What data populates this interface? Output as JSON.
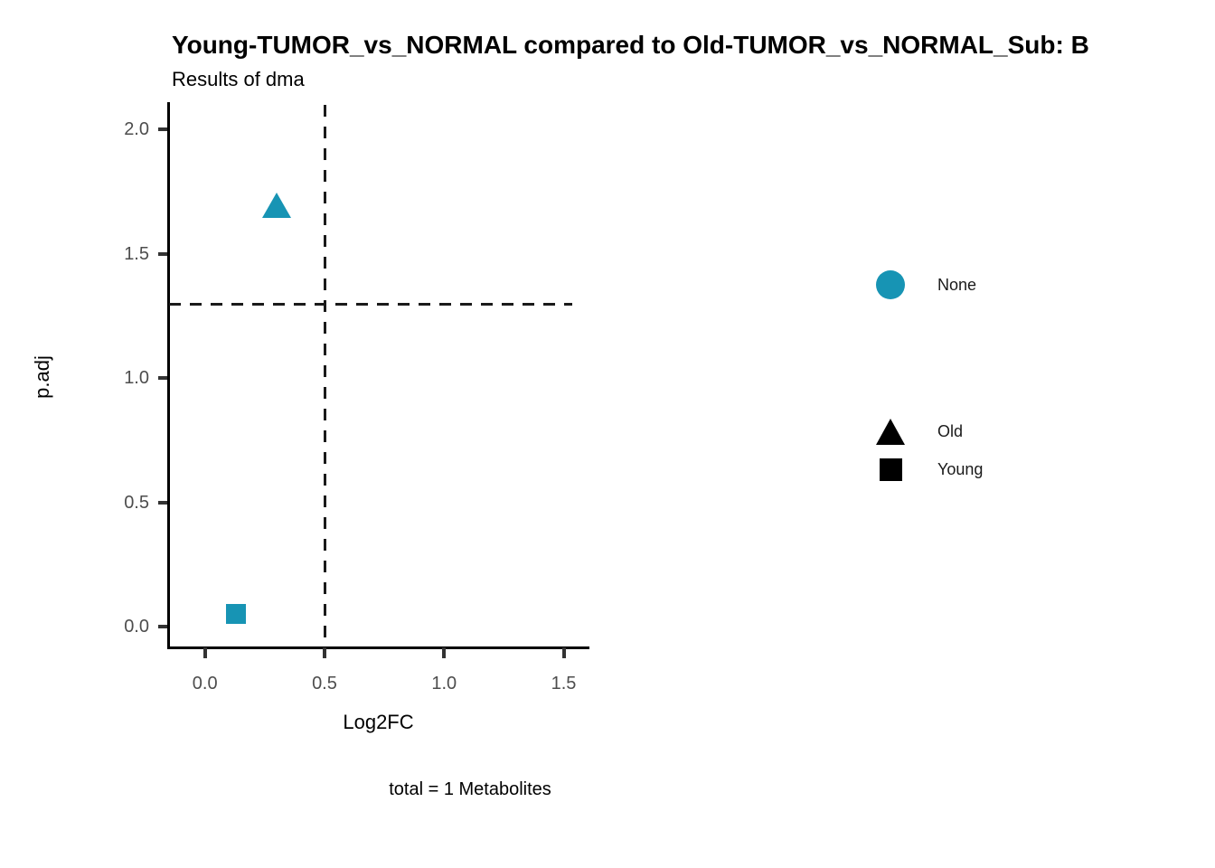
{
  "title": "Young-TUMOR_vs_NORMAL compared to Old-TUMOR_vs_NORMAL_Sub: B",
  "subtitle": "Results of dma",
  "caption": "total = 1 Metabolites",
  "colors": {
    "point_teal": "#1794B4",
    "legend_shape_black": "#000000",
    "axis_line": "#000000",
    "tick_mark": "#333333",
    "tick_label": "#4d4d4d",
    "threshold_line": "#1a1a1a"
  },
  "chart_data": {
    "type": "scatter",
    "title": "Young-TUMOR_vs_NORMAL compared to Old-TUMOR_vs_NORMAL_Sub: B",
    "subtitle": "Results of dma",
    "caption": "total = 1 Metabolites",
    "xlabel": "Log2FC",
    "ylabel": "p.adj",
    "xlim": [
      -0.15,
      1.6
    ],
    "ylim": [
      -0.08,
      2.11
    ],
    "xticks": [
      0.0,
      0.5,
      1.0,
      1.5
    ],
    "xtick_labels": [
      "0.0",
      "0.5",
      "1.0",
      "1.5"
    ],
    "yticks": [
      0.0,
      0.5,
      1.0,
      1.5,
      2.0
    ],
    "ytick_labels": [
      "0.0",
      "0.5",
      "1.0",
      "1.5",
      "2.0"
    ],
    "grid": false,
    "hline": 1.3,
    "vline": 0.5,
    "points": [
      {
        "x": 0.3,
        "y": 1.69,
        "shape": "triangle",
        "color": "#1794B4",
        "shape_group": "Old",
        "color_group": "None"
      },
      {
        "x": 0.13,
        "y": 0.05,
        "shape": "square",
        "color": "#1794B4",
        "shape_group": "Young",
        "color_group": "None"
      }
    ],
    "legend": {
      "position": "right",
      "color_legend": [
        {
          "label": "None",
          "shape": "circle",
          "color": "#1794B4"
        }
      ],
      "shape_legend": [
        {
          "label": "Old",
          "shape": "triangle",
          "color": "#000000"
        },
        {
          "label": "Young",
          "shape": "square",
          "color": "#000000"
        }
      ]
    }
  }
}
